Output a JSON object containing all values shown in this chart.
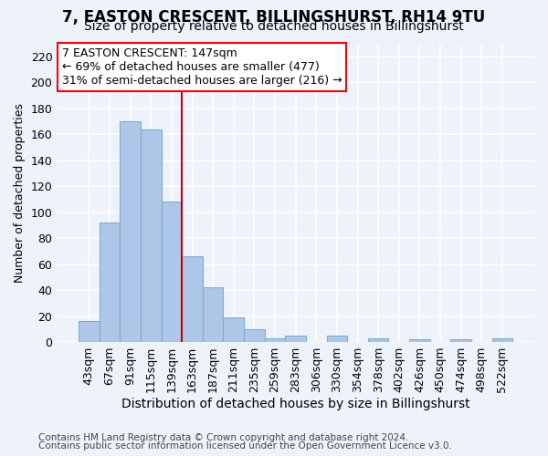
{
  "title": "7, EASTON CRESCENT, BILLINGSHURST, RH14 9TU",
  "subtitle": "Size of property relative to detached houses in Billingshurst",
  "xlabel": "Distribution of detached houses by size in Billingshurst",
  "ylabel": "Number of detached properties",
  "footnote1": "Contains HM Land Registry data © Crown copyright and database right 2024.",
  "footnote2": "Contains public sector information licensed under the Open Government Licence v3.0.",
  "bar_labels": [
    "43sqm",
    "67sqm",
    "91sqm",
    "115sqm",
    "139sqm",
    "163sqm",
    "187sqm",
    "211sqm",
    "235sqm",
    "259sqm",
    "283sqm",
    "306sqm",
    "330sqm",
    "354sqm",
    "378sqm",
    "402sqm",
    "426sqm",
    "450sqm",
    "474sqm",
    "498sqm",
    "522sqm"
  ],
  "bar_values": [
    16,
    92,
    170,
    164,
    108,
    66,
    42,
    19,
    10,
    3,
    5,
    0,
    5,
    0,
    3,
    0,
    2,
    0,
    2,
    0,
    3
  ],
  "bar_color": "#aec6e8",
  "bar_edge_color": "#7aaed4",
  "bg_color": "#eef2fb",
  "grid_color": "#ffffff",
  "annotation_line1": "7 EASTON CRESCENT: 147sqm",
  "annotation_line2": "← 69% of detached houses are smaller (477)",
  "annotation_line3": "31% of semi-detached houses are larger (216) →",
  "vline_x": 4.5,
  "vline_color": "#cc0000",
  "ylim": [
    0,
    230
  ],
  "yticks": [
    0,
    20,
    40,
    60,
    80,
    100,
    120,
    140,
    160,
    180,
    200,
    220
  ],
  "title_fontsize": 12,
  "subtitle_fontsize": 10,
  "xlabel_fontsize": 10,
  "ylabel_fontsize": 9,
  "tick_fontsize": 9,
  "footnote_fontsize": 7.5,
  "annot_fontsize": 9
}
